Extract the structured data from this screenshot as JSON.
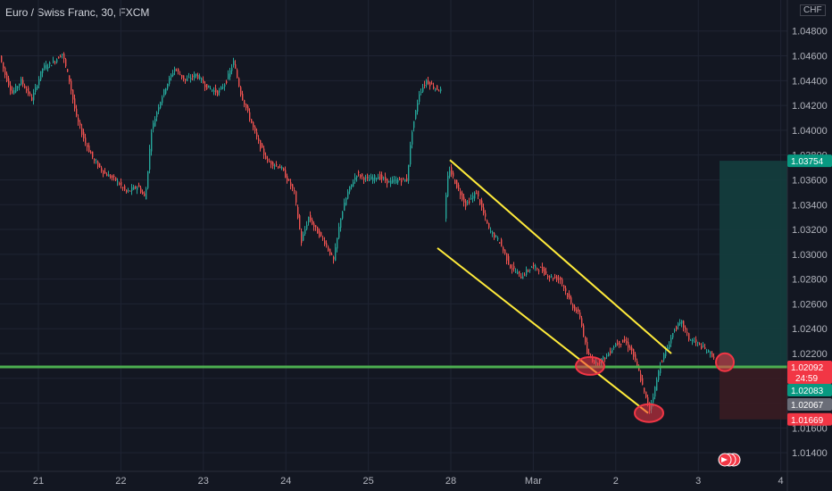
{
  "header": {
    "title": "Euro / Swiss Franc, 30, FXCM",
    "currency": "CHF"
  },
  "colors": {
    "background": "#131722",
    "grid": "#1f2433",
    "bull": "#26a69a",
    "bear": "#ef5350",
    "channel": "#ffeb3b",
    "support": "#4caf50",
    "marker": "#f23645",
    "target_zone": "#143e3e",
    "stop_zone": "#3a1c22"
  },
  "chart_data": {
    "type": "candlestick",
    "title": "Euro / Swiss Franc, 30, FXCM",
    "ylim": [
      1.0125,
      1.0505
    ],
    "y_ticks": [
      "1.04800",
      "1.04600",
      "1.04400",
      "1.04200",
      "1.04000",
      "1.03800",
      "1.03600",
      "1.03400",
      "1.03200",
      "1.03000",
      "1.02800",
      "1.02600",
      "1.02400",
      "1.02200",
      "1.02000",
      "1.01800",
      "1.01600",
      "1.01400"
    ],
    "x_ticks": [
      "21",
      "22",
      "23",
      "24",
      "25",
      "28",
      "Mar",
      "2",
      "3",
      "4"
    ],
    "price_path": [
      [
        0,
        1.046
      ],
      [
        6,
        1.0445
      ],
      [
        14,
        1.043
      ],
      [
        24,
        1.044
      ],
      [
        36,
        1.0425
      ],
      [
        48,
        1.045
      ],
      [
        60,
        1.0455
      ],
      [
        70,
        1.0462
      ],
      [
        78,
        1.044
      ],
      [
        86,
        1.041
      ],
      [
        96,
        1.039
      ],
      [
        106,
        1.0375
      ],
      [
        118,
        1.0365
      ],
      [
        130,
        1.036
      ],
      [
        142,
        1.035
      ],
      [
        155,
        1.0355
      ],
      [
        163,
        1.0345
      ],
      [
        170,
        1.04
      ],
      [
        178,
        1.042
      ],
      [
        186,
        1.0435
      ],
      [
        196,
        1.045
      ],
      [
        208,
        1.044
      ],
      [
        220,
        1.0445
      ],
      [
        232,
        1.0435
      ],
      [
        245,
        1.043
      ],
      [
        254,
        1.044
      ],
      [
        262,
        1.0455
      ],
      [
        270,
        1.043
      ],
      [
        280,
        1.041
      ],
      [
        290,
        1.039
      ],
      [
        300,
        1.0375
      ],
      [
        315,
        1.037
      ],
      [
        330,
        1.035
      ],
      [
        338,
        1.031
      ],
      [
        346,
        1.033
      ],
      [
        354,
        1.032
      ],
      [
        364,
        1.031
      ],
      [
        374,
        1.0295
      ],
      [
        382,
        1.033
      ],
      [
        390,
        1.035
      ],
      [
        400,
        1.0365
      ],
      [
        412,
        1.036
      ],
      [
        424,
        1.0363
      ],
      [
        436,
        1.0358
      ],
      [
        448,
        1.036
      ],
      [
        456,
        1.036
      ],
      [
        462,
        1.04
      ],
      [
        470,
        1.043
      ],
      [
        478,
        1.044
      ],
      [
        486,
        1.0435
      ],
      [
        494,
        1.0432
      ],
      [
        498,
        1.033
      ],
      [
        503,
        1.037
      ],
      [
        512,
        1.0355
      ],
      [
        522,
        1.034
      ],
      [
        534,
        1.035
      ],
      [
        548,
        1.032
      ],
      [
        560,
        1.031
      ],
      [
        572,
        1.029
      ],
      [
        584,
        1.0282
      ],
      [
        596,
        1.029
      ],
      [
        606,
        1.0288
      ],
      [
        616,
        1.0282
      ],
      [
        628,
        1.028
      ],
      [
        640,
        1.026
      ],
      [
        650,
        1.025
      ],
      [
        658,
        1.022
      ],
      [
        668,
        1.0212
      ],
      [
        680,
        1.0218
      ],
      [
        690,
        1.0228
      ],
      [
        700,
        1.023
      ],
      [
        708,
        1.0222
      ],
      [
        716,
        1.0205
      ],
      [
        722,
        1.0188
      ],
      [
        728,
        1.0175
      ],
      [
        734,
        1.0192
      ],
      [
        740,
        1.0212
      ],
      [
        748,
        1.0225
      ],
      [
        756,
        1.024
      ],
      [
        764,
        1.0245
      ],
      [
        772,
        1.0232
      ],
      [
        782,
        1.0228
      ],
      [
        792,
        1.0222
      ],
      [
        800,
        1.0218
      ]
    ],
    "channel": {
      "upper": [
        [
          504,
          1.0376
        ],
        [
          752,
          1.022
        ]
      ],
      "lower": [
        [
          490,
          1.0305
        ],
        [
          726,
          1.0172
        ]
      ]
    },
    "support_level": 1.02092,
    "trade": {
      "entry": 1.02083,
      "target": 1.03754,
      "stop": 1.01669,
      "x_start": 806
    },
    "markers": [
      {
        "x": 661,
        "y": 1.021
      },
      {
        "x": 727,
        "y": 1.0172
      },
      {
        "x": 812,
        "y": 1.0213
      }
    ],
    "price_labels": {
      "target": "1.03754",
      "last": "1.02092",
      "countdown": "24:59",
      "bid": "1.02083",
      "ask": "1.02067",
      "stop": "1.01669"
    }
  }
}
